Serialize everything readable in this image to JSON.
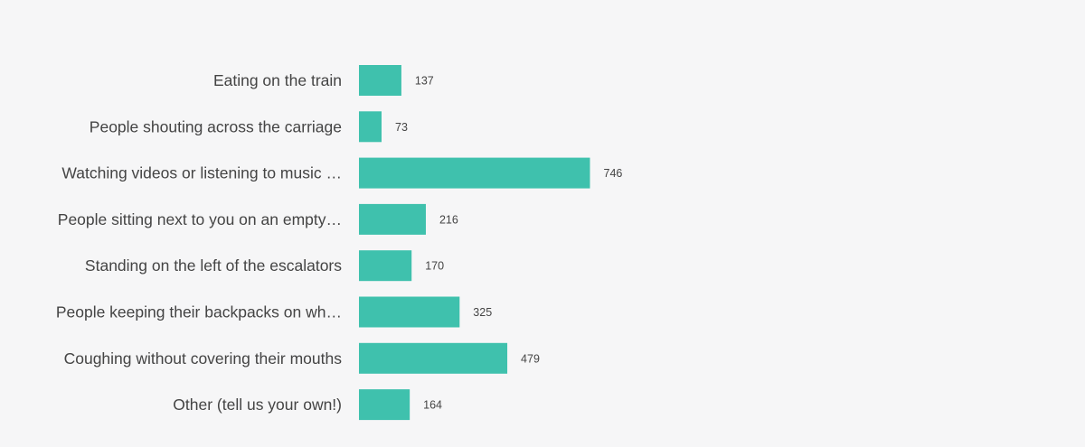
{
  "chart_data": {
    "type": "bar",
    "orientation": "horizontal",
    "categories": [
      "Eating on the train",
      "People shouting across the carriage",
      "Watching videos or listening to music …",
      "People sitting next to you on an empty…",
      "Standing on the left of the escalators",
      "People keeping their backpacks on wh…",
      "Coughing without covering their mouths",
      "Other (tell us your own!)"
    ],
    "values": [
      137,
      73,
      746,
      216,
      170,
      325,
      479,
      164
    ],
    "value_labels": [
      "137",
      "73",
      "746",
      "216",
      "170",
      "325",
      "479",
      "164"
    ],
    "title": "",
    "xlabel": "",
    "ylabel": "",
    "grid": false,
    "legend": "none"
  },
  "colors": {
    "bar": "#3fc1ad",
    "background": "#f6f6f7",
    "text": "#444444"
  }
}
